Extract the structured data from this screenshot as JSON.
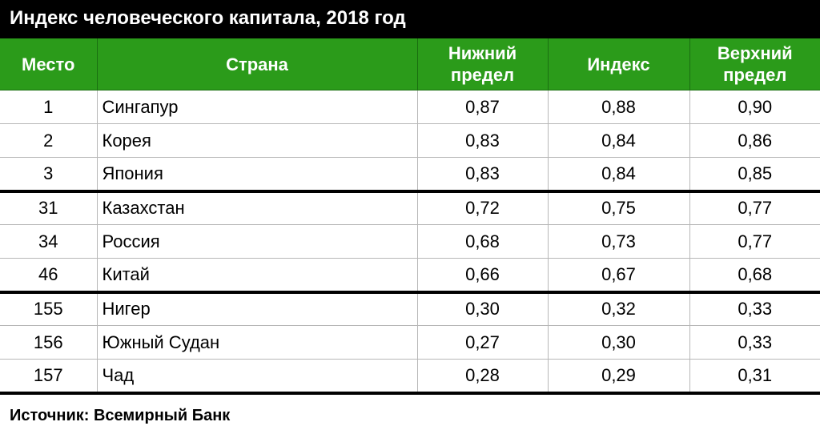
{
  "title": "Индекс человеческого капитала, 2018 год",
  "columns": {
    "rank": "Место",
    "country": "Страна",
    "lower_line1": "Нижний",
    "lower_line2": "предел",
    "index": "Индекс",
    "upper_line1": "Верхний",
    "upper_line2": "предел"
  },
  "rows": [
    {
      "rank": "1",
      "country": "Сингапур",
      "lower": "0,87",
      "index": "0,88",
      "upper": "0,90"
    },
    {
      "rank": "2",
      "country": "Корея",
      "lower": "0,83",
      "index": "0,84",
      "upper": "0,86"
    },
    {
      "rank": "3",
      "country": "Япония",
      "lower": "0,83",
      "index": "0,84",
      "upper": "0,85"
    },
    {
      "rank": "31",
      "country": "Казахстан",
      "lower": "0,72",
      "index": "0,75",
      "upper": "0,77"
    },
    {
      "rank": "34",
      "country": "Россия",
      "lower": "0,68",
      "index": "0,73",
      "upper": "0,77"
    },
    {
      "rank": "46",
      "country": "Китай",
      "lower": "0,66",
      "index": "0,67",
      "upper": "0,68"
    },
    {
      "rank": "155",
      "country": "Нигер",
      "lower": "0,30",
      "index": "0,32",
      "upper": "0,33"
    },
    {
      "rank": "156",
      "country": "Южный Судан",
      "lower": "0,27",
      "index": "0,30",
      "upper": "0,33"
    },
    {
      "rank": "157",
      "country": "Чад",
      "lower": "0,28",
      "index": "0,29",
      "upper": "0,31"
    }
  ],
  "source": "Источник: Всемирный Банк",
  "colors": {
    "header_bg": "#2b9b1a",
    "title_bg": "#000000"
  }
}
